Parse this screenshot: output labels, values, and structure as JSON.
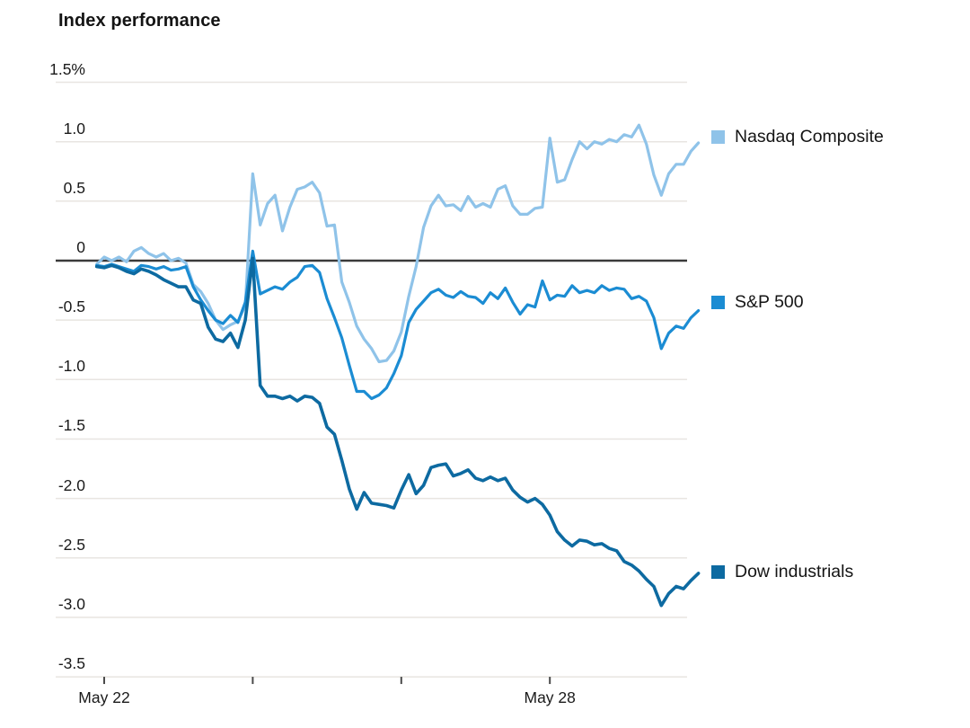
{
  "header": {
    "title": "Index performance"
  },
  "colors": {
    "background": "#ffffff",
    "grid": "#e8e5e1",
    "zero_line": "#3a3a3a",
    "axis_tick": "#4a4a4a",
    "text": "#141414",
    "nasdaq": "#8fc3e9",
    "sp500": "#1b8cd3",
    "dow": "#0d6aa1"
  },
  "chart_data": {
    "type": "line",
    "title": "Index performance",
    "xlabel": "",
    "ylabel": "",
    "y_unit": "%",
    "ylim": [
      -3.5,
      1.5
    ],
    "grid": true,
    "legend_position": "right",
    "yticks": [
      {
        "value": 1.5,
        "label": "1.5%"
      },
      {
        "value": 1.0,
        "label": "1.0"
      },
      {
        "value": 0.5,
        "label": "0.5"
      },
      {
        "value": 0,
        "label": "0"
      },
      {
        "value": -0.5,
        "label": "-0.5"
      },
      {
        "value": -1.0,
        "label": "-1.0"
      },
      {
        "value": -1.5,
        "label": "-1.5"
      },
      {
        "value": -2.0,
        "label": "-2.0"
      },
      {
        "value": -2.5,
        "label": "-2.5"
      },
      {
        "value": -3.0,
        "label": "-3.0"
      },
      {
        "value": -3.5,
        "label": "-3.5"
      }
    ],
    "xticks": [
      {
        "day": 0,
        "label": "May 22"
      },
      {
        "day": 1,
        "label": ""
      },
      {
        "day": 2,
        "label": ""
      },
      {
        "day": 3,
        "label": "May 28"
      }
    ],
    "x_days": [
      -0.05,
      0,
      0.05,
      0.1,
      0.15,
      0.2,
      0.25,
      0.3,
      0.35,
      0.4,
      0.45,
      0.5,
      0.55,
      0.6,
      0.65,
      0.7,
      0.75,
      0.8,
      0.85,
      0.9,
      0.95,
      1,
      1.05,
      1.1,
      1.15,
      1.2,
      1.25,
      1.3,
      1.35,
      1.4,
      1.45,
      1.5,
      1.55,
      1.6,
      1.65,
      1.7,
      1.75,
      1.8,
      1.85,
      1.9,
      1.95,
      2,
      2.05,
      2.1,
      2.15,
      2.2,
      2.25,
      2.3,
      2.35,
      2.4,
      2.45,
      2.5,
      2.55,
      2.6,
      2.65,
      2.7,
      2.75,
      2.8,
      2.85,
      2.9,
      2.95,
      3,
      3.05,
      3.1,
      3.15,
      3.2,
      3.25,
      3.3,
      3.35,
      3.4,
      3.45,
      3.5,
      3.55,
      3.6,
      3.65,
      3.7,
      3.75,
      3.8,
      3.85,
      3.9,
      3.95,
      4
    ],
    "series": [
      {
        "name": "Nasdaq Composite",
        "color": "#8fc3e9",
        "values": [
          -0.03,
          0.03,
          0,
          0.03,
          -0.01,
          0.08,
          0.11,
          0.06,
          0.03,
          0.06,
          0,
          0.02,
          -0.02,
          -0.2,
          -0.26,
          -0.36,
          -0.5,
          -0.58,
          -0.54,
          -0.51,
          -0.38,
          0.73,
          0.3,
          0.48,
          0.55,
          0.25,
          0.45,
          0.6,
          0.62,
          0.66,
          0.57,
          0.29,
          0.3,
          -0.18,
          -0.35,
          -0.55,
          -0.66,
          -0.74,
          -0.85,
          -0.84,
          -0.76,
          -0.6,
          -0.3,
          -0.05,
          0.28,
          0.46,
          0.55,
          0.46,
          0.47,
          0.42,
          0.54,
          0.45,
          0.48,
          0.45,
          0.6,
          0.63,
          0.46,
          0.39,
          0.39,
          0.44,
          0.45,
          1.03,
          0.66,
          0.68,
          0.85,
          1,
          0.94,
          1,
          0.98,
          1.02,
          1,
          1.06,
          1.04,
          1.14,
          0.98,
          0.72,
          0.55,
          0.73,
          0.81,
          0.81,
          0.92,
          0.99
        ]
      },
      {
        "name": "S&P 500",
        "color": "#1b8cd3",
        "values": [
          -0.04,
          -0.05,
          -0.03,
          -0.05,
          -0.07,
          -0.09,
          -0.04,
          -0.05,
          -0.07,
          -0.05,
          -0.08,
          -0.07,
          -0.05,
          -0.22,
          -0.33,
          -0.42,
          -0.5,
          -0.53,
          -0.46,
          -0.52,
          -0.35,
          0.08,
          -0.28,
          -0.25,
          -0.22,
          -0.24,
          -0.18,
          -0.14,
          -0.05,
          -0.04,
          -0.1,
          -0.32,
          -0.48,
          -0.65,
          -0.88,
          -1.1,
          -1.1,
          -1.16,
          -1.13,
          -1.07,
          -0.95,
          -0.8,
          -0.52,
          -0.41,
          -0.34,
          -0.27,
          -0.24,
          -0.29,
          -0.31,
          -0.26,
          -0.3,
          -0.31,
          -0.36,
          -0.27,
          -0.32,
          -0.23,
          -0.35,
          -0.45,
          -0.37,
          -0.39,
          -0.17,
          -0.33,
          -0.29,
          -0.3,
          -0.21,
          -0.27,
          -0.25,
          -0.27,
          -0.21,
          -0.25,
          -0.23,
          -0.24,
          -0.32,
          -0.3,
          -0.34,
          -0.48,
          -0.74,
          -0.61,
          -0.55,
          -0.57,
          -0.48,
          -0.42
        ]
      },
      {
        "name": "Dow industrials",
        "color": "#0d6aa1",
        "values": [
          -0.05,
          -0.06,
          -0.04,
          -0.06,
          -0.09,
          -0.11,
          -0.07,
          -0.09,
          -0.12,
          -0.16,
          -0.19,
          -0.22,
          -0.22,
          -0.33,
          -0.36,
          -0.56,
          -0.66,
          -0.68,
          -0.61,
          -0.73,
          -0.5,
          0.02,
          -1.05,
          -1.14,
          -1.14,
          -1.16,
          -1.14,
          -1.18,
          -1.14,
          -1.15,
          -1.2,
          -1.4,
          -1.46,
          -1.68,
          -1.92,
          -2.09,
          -1.95,
          -2.04,
          -2.05,
          -2.06,
          -2.08,
          -1.93,
          -1.8,
          -1.96,
          -1.89,
          -1.74,
          -1.72,
          -1.71,
          -1.81,
          -1.79,
          -1.76,
          -1.83,
          -1.85,
          -1.82,
          -1.85,
          -1.83,
          -1.93,
          -1.99,
          -2.03,
          -2,
          -2.05,
          -2.14,
          -2.28,
          -2.35,
          -2.4,
          -2.35,
          -2.36,
          -2.39,
          -2.38,
          -2.42,
          -2.44,
          -2.53,
          -2.56,
          -2.61,
          -2.68,
          -2.74,
          -2.9,
          -2.8,
          -2.74,
          -2.76,
          -2.69,
          -2.63
        ]
      }
    ]
  }
}
